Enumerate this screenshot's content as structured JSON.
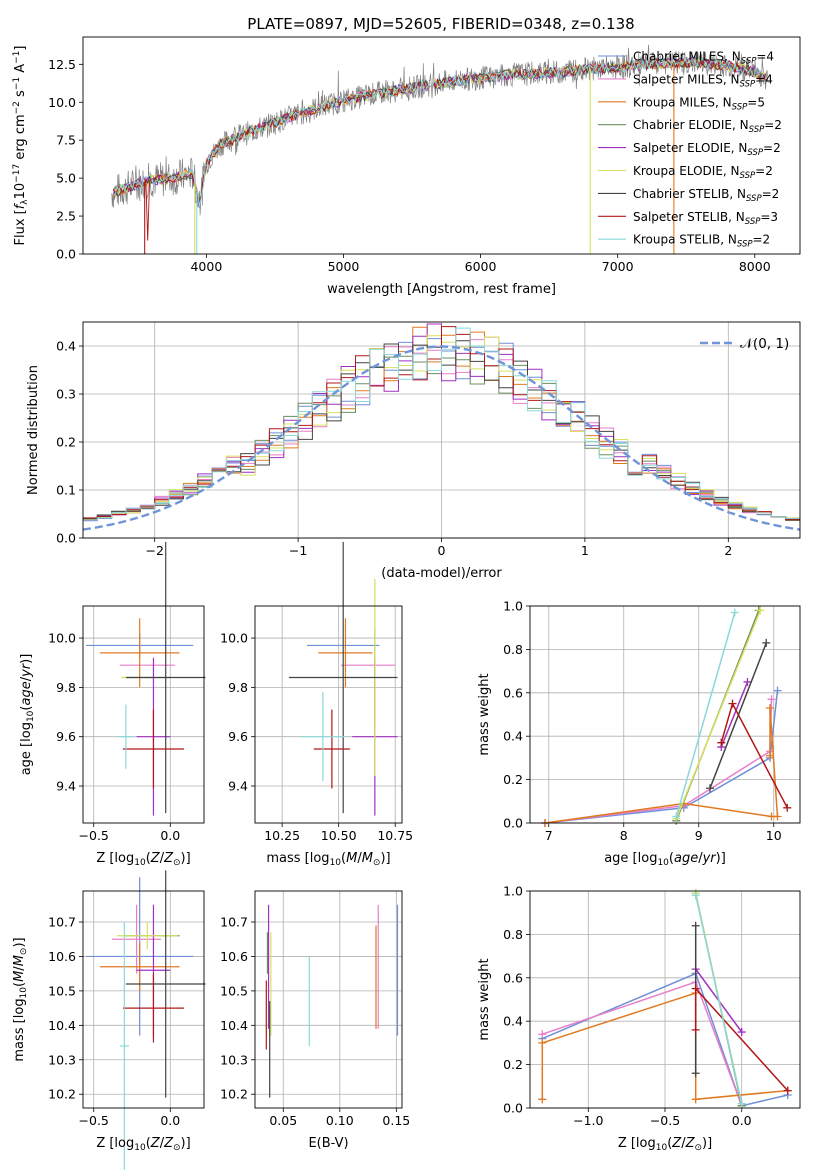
{
  "figure_title": "PLATE=0897, MJD=52605, FIBERID=0348, z=0.138",
  "colors": {
    "chabrier_miles": "#6f8fd8",
    "salpeter_miles": "#e87fc8",
    "kroupa_miles": "#e07a20",
    "chabrier_elodie": "#6b8f62",
    "salpeter_elodie": "#a030c0",
    "kroupa_elodie": "#d8e060",
    "chabrier_stelib": "#444444",
    "salpeter_stelib": "#b01818",
    "kroupa_stelib": "#8ad8d8",
    "data": "#808080",
    "normal": "#6f95d8"
  },
  "chart_data": [
    {
      "id": "spectrum",
      "type": "line",
      "title": "PLATE=0897, MJD=52605, FIBERID=0348, z=0.138",
      "xlabel": "wavelength [Angstrom, rest frame]",
      "ylabel": "Flux [f_λ 10^-17 erg cm^-2 s^-1 A^-1]",
      "xlim": [
        3100,
        8330
      ],
      "ylim": [
        0,
        14.3
      ],
      "xticks": [
        4000,
        5000,
        6000,
        7000,
        8000
      ],
      "yticks": [
        "0.0",
        "2.5",
        "5.0",
        "7.5",
        "10.0",
        "12.5"
      ],
      "continuum": [
        [
          3300,
          4.0
        ],
        [
          3400,
          4.3
        ],
        [
          3600,
          4.9
        ],
        [
          3700,
          4.9
        ],
        [
          3900,
          5.3
        ],
        [
          3950,
          3.3
        ],
        [
          4000,
          6.0
        ],
        [
          4100,
          7.2
        ],
        [
          4250,
          7.8
        ],
        [
          4400,
          8.3
        ],
        [
          4600,
          9.0
        ],
        [
          4800,
          9.6
        ],
        [
          5000,
          10.1
        ],
        [
          5200,
          10.5
        ],
        [
          5400,
          10.8
        ],
        [
          5600,
          11.1
        ],
        [
          5800,
          11.4
        ],
        [
          6000,
          11.6
        ],
        [
          6200,
          11.8
        ],
        [
          6400,
          11.9
        ],
        [
          6600,
          12.0
        ],
        [
          6800,
          12.2
        ],
        [
          7000,
          12.3
        ],
        [
          7200,
          12.5
        ],
        [
          7400,
          12.6
        ],
        [
          7600,
          12.6
        ],
        [
          7800,
          12.4
        ],
        [
          8000,
          12.0
        ],
        [
          8100,
          11.5
        ]
      ],
      "legend_position": "top-right",
      "legend": [
        {
          "label": "Chabrier MILES, N",
          "sub": "SSP",
          "value": "=4",
          "color_key": "chabrier_miles"
        },
        {
          "label": "Salpeter MILES, N",
          "sub": "SSP",
          "value": "=4",
          "color_key": "salpeter_miles"
        },
        {
          "label": "Kroupa MILES, N",
          "sub": "SSP",
          "value": "=5",
          "color_key": "kroupa_miles"
        },
        {
          "label": "Chabrier ELODIE, N",
          "sub": "SSP",
          "value": "=2",
          "color_key": "chabrier_elodie"
        },
        {
          "label": "Salpeter ELODIE, N",
          "sub": "SSP",
          "value": "=2",
          "color_key": "salpeter_elodie"
        },
        {
          "label": "Kroupa ELODIE, N",
          "sub": "SSP",
          "value": "=2",
          "color_key": "kroupa_elodie"
        },
        {
          "label": "Chabrier STELIB, N",
          "sub": "SSP",
          "value": "=2",
          "color_key": "chabrier_stelib"
        },
        {
          "label": "Salpeter STELIB, N",
          "sub": "SSP",
          "value": "=3",
          "color_key": "salpeter_stelib"
        },
        {
          "label": "Kroupa STELIB, N",
          "sub": "SSP",
          "value": "=2",
          "color_key": "kroupa_stelib"
        }
      ]
    },
    {
      "id": "residuals",
      "type": "histogram",
      "xlabel": "(data-model)/error",
      "ylabel": "Normed distribution",
      "xlim": [
        -2.5,
        2.5
      ],
      "ylim": [
        0,
        0.45
      ],
      "xticks": [
        "−2",
        "−1",
        "0",
        "1",
        "2"
      ],
      "yticks": [
        "0.0",
        "0.1",
        "0.2",
        "0.3",
        "0.4"
      ],
      "grid": true,
      "legend_label": "𝒩(0, 1)",
      "bins": 50
    },
    {
      "id": "age-vs-Z",
      "type": "errorbar",
      "xlabel": "Z [log10(Z/Z⊙)]",
      "ylabel": "age [log10(age/yr)]",
      "xlim": [
        -0.57,
        0.22
      ],
      "ylim": [
        9.25,
        10.13
      ],
      "xticks": [
        "−0.5",
        "0.0"
      ],
      "yticks": [
        "9.4",
        "9.6",
        "9.8",
        "10.0"
      ],
      "points": [
        {
          "c": "chabrier_miles",
          "x": -0.2,
          "xerr": 0.35,
          "y": 9.97,
          "yerr": 0.05
        },
        {
          "c": "salpeter_miles",
          "x": -0.15,
          "xerr": 0.18,
          "y": 9.89,
          "yerr": 0.0
        },
        {
          "c": "kroupa_miles",
          "x": -0.2,
          "xerr": 0.26,
          "y": 9.94,
          "yerr": 0.14
        },
        {
          "c": "chabrier_elodie",
          "x": -0.14,
          "xerr": 0.14,
          "y": 9.84,
          "yerr": 0.0
        },
        {
          "c": "salpeter_elodie",
          "x": -0.11,
          "xerr": 0.11,
          "y": 9.6,
          "yerr": 0.32
        },
        {
          "c": "kroupa_elodie",
          "x": -0.27,
          "xerr": 0.05,
          "y": 9.84,
          "yerr": 0.0
        },
        {
          "c": "chabrier_stelib",
          "x": -0.03,
          "xerr": 0.26,
          "y": 9.84,
          "yerr": 0.55
        },
        {
          "c": "salpeter_stelib",
          "x": -0.11,
          "xerr": 0.2,
          "y": 9.55,
          "yerr": 0.16
        },
        {
          "c": "kroupa_stelib",
          "x": -0.29,
          "xerr": 0.05,
          "y": 9.6,
          "yerr": 0.13
        }
      ]
    },
    {
      "id": "age-vs-mass",
      "type": "errorbar",
      "xlabel": "mass [log10(M/M⊙)]",
      "xlim": [
        10.13,
        10.78
      ],
      "ylim": [
        9.25,
        10.13
      ],
      "xticks": [
        "10.25",
        "10.50",
        "10.75"
      ],
      "yticks": [
        "9.4",
        "9.6",
        "9.8",
        "10.0"
      ],
      "points": [
        {
          "c": "chabrier_miles",
          "x": 10.52,
          "xerr": 0.16,
          "y": 9.97,
          "yerr": 0.0
        },
        {
          "c": "salpeter_miles",
          "x": 10.63,
          "xerr": 0.12,
          "y": 9.89,
          "yerr": 0.0
        },
        {
          "c": "kroupa_miles",
          "x": 10.53,
          "xerr": 0.12,
          "y": 9.94,
          "yerr": 0.14
        },
        {
          "c": "chabrier_elodie",
          "x": 10.66,
          "xerr": 0.0,
          "y": 9.84,
          "yerr": 0.2
        },
        {
          "c": "salpeter_elodie",
          "x": 10.66,
          "xerr": 0.1,
          "y": 9.6,
          "yerr": 0.32
        },
        {
          "c": "kroupa_elodie",
          "x": 10.66,
          "xerr": 0.0,
          "y": 9.84,
          "yerr": 0.4
        },
        {
          "c": "chabrier_stelib",
          "x": 10.52,
          "xerr": 0.24,
          "y": 9.84,
          "yerr": 0.55
        },
        {
          "c": "salpeter_stelib",
          "x": 10.47,
          "xerr": 0.08,
          "y": 9.55,
          "yerr": 0.16
        },
        {
          "c": "kroupa_stelib",
          "x": 10.43,
          "xerr": 0.1,
          "y": 9.6,
          "yerr": 0.18
        }
      ]
    },
    {
      "id": "massweight-vs-age",
      "type": "line",
      "xlabel": "age [log10(age/yr)]",
      "ylabel": "mass weight",
      "xlim": [
        6.75,
        10.35
      ],
      "ylim": [
        0,
        1.0
      ],
      "xticks": [
        "7",
        "8",
        "9",
        "10"
      ],
      "yticks": [
        "0.0",
        "0.2",
        "0.4",
        "0.6",
        "0.8",
        "1.0"
      ],
      "series": [
        {
          "c": "chabrier_miles",
          "pts": [
            [
              6.95,
              0.0
            ],
            [
              8.8,
              0.07
            ],
            [
              9.95,
              0.3
            ],
            [
              10.05,
              0.61
            ]
          ]
        },
        {
          "c": "salpeter_miles",
          "pts": [
            [
              6.95,
              0.0
            ],
            [
              8.8,
              0.08
            ],
            [
              9.95,
              0.33
            ],
            [
              9.97,
              0.57
            ]
          ]
        },
        {
          "c": "kroupa_miles",
          "pts": [
            [
              6.95,
              0.0
            ],
            [
              8.8,
              0.09
            ],
            [
              9.97,
              0.03
            ],
            [
              10.05,
              0.03
            ],
            [
              9.95,
              0.53
            ],
            [
              9.95,
              0.31
            ]
          ]
        },
        {
          "c": "chabrier_elodie",
          "pts": [
            [
              8.7,
              0.01
            ],
            [
              9.8,
              0.98
            ]
          ]
        },
        {
          "c": "salpeter_elodie",
          "pts": [
            [
              9.3,
              0.35
            ],
            [
              9.65,
              0.65
            ]
          ]
        },
        {
          "c": "kroupa_elodie",
          "pts": [
            [
              8.7,
              0.02
            ],
            [
              9.82,
              0.98
            ]
          ]
        },
        {
          "c": "chabrier_stelib",
          "pts": [
            [
              9.15,
              0.16
            ],
            [
              9.9,
              0.83
            ]
          ]
        },
        {
          "c": "salpeter_stelib",
          "pts": [
            [
              9.3,
              0.37
            ],
            [
              9.45,
              0.55
            ],
            [
              10.18,
              0.07
            ]
          ]
        },
        {
          "c": "kroupa_stelib",
          "pts": [
            [
              8.7,
              0.03
            ],
            [
              9.48,
              0.97
            ]
          ]
        }
      ]
    },
    {
      "id": "mass-vs-Z",
      "type": "errorbar",
      "xlabel": "Z [log10(Z/Z⊙)]",
      "ylabel": "mass [log10(M/M⊙)]",
      "xlim": [
        -0.57,
        0.22
      ],
      "ylim": [
        10.16,
        10.79
      ],
      "xticks": [
        "−0.5",
        "0.0"
      ],
      "yticks": [
        "10.2",
        "10.3",
        "10.4",
        "10.5",
        "10.6",
        "10.7"
      ],
      "points": [
        {
          "c": "chabrier_miles",
          "x": -0.2,
          "xerr": 0.35,
          "y": 10.6,
          "yerr": 0.23
        },
        {
          "c": "salpeter_miles",
          "x": -0.22,
          "xerr": 0.16,
          "y": 10.65,
          "yerr": 0.1
        },
        {
          "c": "kroupa_miles",
          "x": -0.2,
          "xerr": 0.26,
          "y": 10.57,
          "yerr": 0.07
        },
        {
          "c": "chabrier_elodie",
          "x": -0.12,
          "xerr": 0.18,
          "y": 10.66,
          "yerr": 0.0
        },
        {
          "c": "salpeter_elodie",
          "x": -0.11,
          "xerr": 0.11,
          "y": 10.56,
          "yerr": 0.19
        },
        {
          "c": "kroupa_elodie",
          "x": -0.15,
          "xerr": 0.2,
          "y": 10.66,
          "yerr": 0.04
        },
        {
          "c": "chabrier_stelib",
          "x": -0.03,
          "xerr": 0.26,
          "y": 10.52,
          "yerr": 0.33
        },
        {
          "c": "salpeter_stelib",
          "x": -0.11,
          "xerr": 0.2,
          "y": 10.45,
          "yerr": 0.1
        },
        {
          "c": "kroupa_stelib",
          "x": -0.3,
          "xerr": 0.03,
          "y": 10.34,
          "yerr": 0.36
        }
      ]
    },
    {
      "id": "mass-vs-ebv",
      "type": "errorbar",
      "xlabel": "E(B-V)",
      "xlim": [
        0.025,
        0.155
      ],
      "ylim": [
        10.16,
        10.79
      ],
      "xticks": [
        "0.05",
        "0.10",
        "0.15"
      ],
      "yticks": [
        "10.2",
        "10.3",
        "10.4",
        "10.5",
        "10.6",
        "10.7"
      ],
      "points": [
        {
          "c": "chabrier_miles",
          "x": 0.151,
          "xerr": 0.0,
          "y": 10.56,
          "yerr": 0.19
        },
        {
          "c": "salpeter_miles",
          "x": 0.134,
          "xerr": 0.0,
          "y": 10.57,
          "yerr": 0.18
        },
        {
          "c": "kroupa_miles",
          "x": 0.132,
          "xerr": 0.0,
          "y": 10.54,
          "yerr": 0.15
        },
        {
          "c": "chabrier_elodie",
          "x": 0.036,
          "xerr": 0.0,
          "y": 10.61,
          "yerr": 0.06
        },
        {
          "c": "salpeter_elodie",
          "x": 0.037,
          "xerr": 0.0,
          "y": 10.57,
          "yerr": 0.18
        },
        {
          "c": "kroupa_elodie",
          "x": 0.039,
          "xerr": 0.0,
          "y": 10.52,
          "yerr": 0.15
        },
        {
          "c": "chabrier_stelib",
          "x": 0.038,
          "xerr": 0.0,
          "y": 10.33,
          "yerr": 0.14
        },
        {
          "c": "salpeter_stelib",
          "x": 0.035,
          "xerr": 0.0,
          "y": 10.43,
          "yerr": 0.1
        },
        {
          "c": "kroupa_stelib",
          "x": 0.073,
          "xerr": 0.0,
          "y": 10.47,
          "yerr": 0.13
        }
      ]
    },
    {
      "id": "massweight-vs-Z",
      "type": "line",
      "xlabel": "Z [log10(Z/Z⊙)]",
      "ylabel": "mass weight",
      "xlim": [
        -1.38,
        0.38
      ],
      "ylim": [
        0,
        1.0
      ],
      "xticks": [
        "−1.0",
        "−0.5",
        "0.0"
      ],
      "yticks": [
        "0.0",
        "0.2",
        "0.4",
        "0.6",
        "0.8",
        "1.0"
      ],
      "series": [
        {
          "c": "chabrier_miles",
          "pts": [
            [
              -1.3,
              0.32
            ],
            [
              -0.3,
              0.62
            ],
            [
              0.0,
              0.01
            ],
            [
              0.3,
              0.06
            ]
          ]
        },
        {
          "c": "salpeter_miles",
          "pts": [
            [
              -1.3,
              0.34
            ],
            [
              -0.3,
              0.58
            ],
            [
              0.0,
              0.01
            ]
          ]
        },
        {
          "c": "kroupa_miles",
          "pts": [
            [
              -1.3,
              0.04
            ],
            [
              -1.3,
              0.3
            ],
            [
              -0.3,
              0.53
            ],
            [
              -0.3,
              0.04
            ],
            [
              0.3,
              0.08
            ]
          ]
        },
        {
          "c": "chabrier_elodie",
          "pts": [
            [
              -0.3,
              0.99
            ],
            [
              0.0,
              0.01
            ]
          ]
        },
        {
          "c": "salpeter_elodie",
          "pts": [
            [
              -0.3,
              0.64
            ],
            [
              0.0,
              0.35
            ]
          ]
        },
        {
          "c": "kroupa_elodie",
          "pts": [
            [
              -0.3,
              0.99
            ],
            [
              0.0,
              0.02
            ]
          ]
        },
        {
          "c": "chabrier_stelib",
          "pts": [
            [
              -0.3,
              0.16
            ],
            [
              -0.3,
              0.84
            ]
          ]
        },
        {
          "c": "salpeter_stelib",
          "pts": [
            [
              -0.3,
              0.36
            ],
            [
              -0.3,
              0.55
            ],
            [
              0.3,
              0.08
            ]
          ]
        },
        {
          "c": "kroupa_stelib",
          "pts": [
            [
              -0.3,
              0.98
            ],
            [
              0.0,
              0.02
            ]
          ]
        }
      ]
    }
  ]
}
